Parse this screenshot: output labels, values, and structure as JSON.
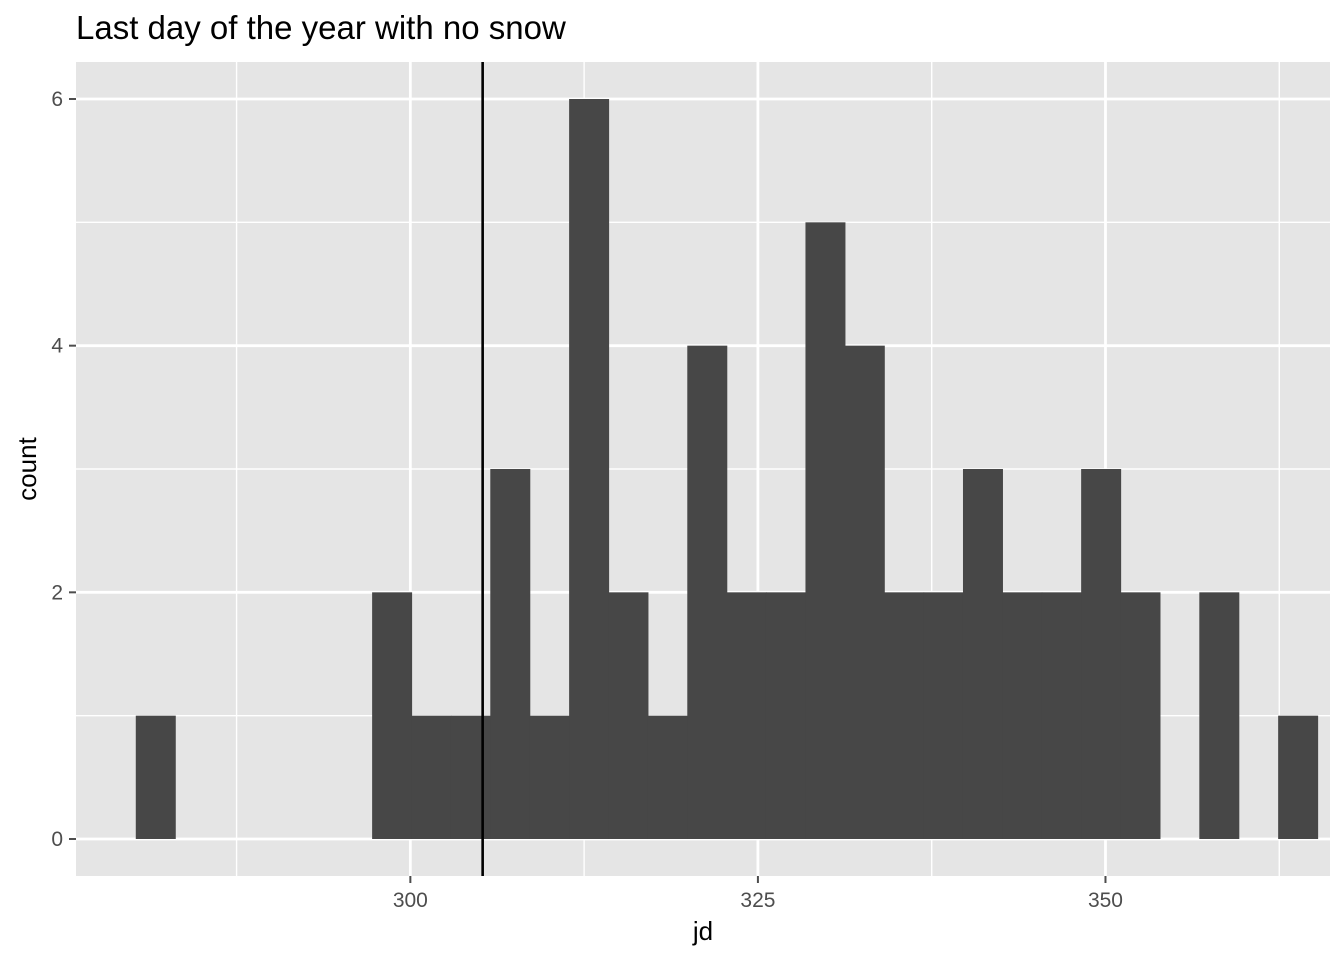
{
  "chart_data": {
    "type": "bar",
    "title": "Last day of the year with no snow",
    "xlabel": "jd",
    "ylabel": "count",
    "bin_width": 2.8333,
    "bins": [
      {
        "start": 280.25,
        "count": 1
      },
      {
        "start": 283.08,
        "count": 0
      },
      {
        "start": 285.92,
        "count": 0
      },
      {
        "start": 288.75,
        "count": 0
      },
      {
        "start": 291.58,
        "count": 0
      },
      {
        "start": 294.42,
        "count": 0
      },
      {
        "start": 297.25,
        "count": 2
      },
      {
        "start": 300.08,
        "count": 1
      },
      {
        "start": 302.92,
        "count": 1
      },
      {
        "start": 305.75,
        "count": 3
      },
      {
        "start": 308.58,
        "count": 1
      },
      {
        "start": 311.42,
        "count": 6
      },
      {
        "start": 314.25,
        "count": 2
      },
      {
        "start": 317.08,
        "count": 1
      },
      {
        "start": 319.92,
        "count": 4
      },
      {
        "start": 322.75,
        "count": 2
      },
      {
        "start": 325.58,
        "count": 2
      },
      {
        "start": 328.42,
        "count": 5
      },
      {
        "start": 331.25,
        "count": 4
      },
      {
        "start": 334.08,
        "count": 2
      },
      {
        "start": 336.92,
        "count": 2
      },
      {
        "start": 339.75,
        "count": 3
      },
      {
        "start": 342.58,
        "count": 2
      },
      {
        "start": 345.42,
        "count": 2
      },
      {
        "start": 348.25,
        "count": 3
      },
      {
        "start": 351.08,
        "count": 2
      },
      {
        "start": 353.92,
        "count": 0
      },
      {
        "start": 356.75,
        "count": 2
      },
      {
        "start": 359.58,
        "count": 0
      },
      {
        "start": 362.42,
        "count": 1
      }
    ],
    "vline_x": 305.2,
    "xlim": [
      275.95,
      366.15
    ],
    "ylim": [
      -0.3,
      6.3
    ],
    "x_ticks": [
      300,
      325,
      350
    ],
    "x_minor_ticks": [
      287.5,
      312.5,
      337.5,
      362.5
    ],
    "y_ticks": [
      0,
      2,
      4,
      6
    ],
    "y_minor_ticks": [
      1,
      3,
      5
    ],
    "grid": true,
    "legend": "none",
    "colors": {
      "panel": "#e5e5e5",
      "grid": "#ffffff",
      "bar": "#474747",
      "vline": "#000000",
      "tick": "#4d4d4d"
    }
  }
}
